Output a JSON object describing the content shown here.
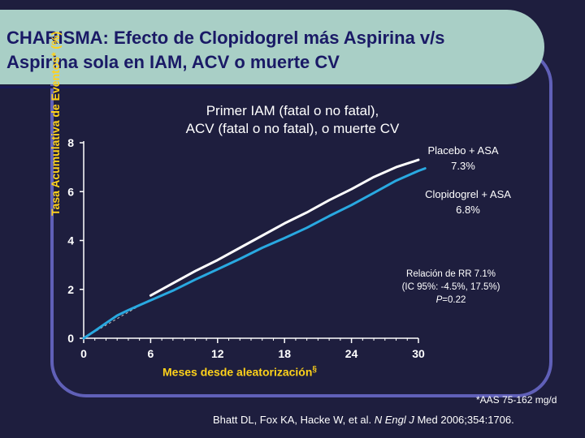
{
  "slide": {
    "title_line1": "CHARISMA: Efecto de Clopidogrel más Aspirina v/s",
    "title_line2": "Aspirina sola en IAM, ACV o muerte CV",
    "footnote": "*AAS 75-162 mg/d",
    "citation_prefix": "Bhatt DL, Fox KA, Hacke W, et al. ",
    "citation_journal": "N Engl J",
    "citation_suffix": " Med 2006;354:1706."
  },
  "chart_data": {
    "type": "line",
    "title_line1": "Primer IAM (fatal o no fatal),",
    "title_line2": "ACV (fatal o no fatal), o muerte CV",
    "ylabel": "Tasa Acumulativa de Eventos* (%)",
    "xlabel": "Meses desde aleatorización",
    "xlabel_sup": "§",
    "xlim": [
      0,
      30
    ],
    "ylim": [
      0,
      8
    ],
    "xticks": [
      "0",
      "6",
      "12",
      "18",
      "24",
      "30"
    ],
    "yticks": [
      "0",
      "2",
      "4",
      "6",
      "8"
    ],
    "series": [
      {
        "name": "Placebo + ASA",
        "value_label": "7.3%",
        "color": "#ffffff",
        "x": [
          6,
          8,
          10,
          12,
          14,
          16,
          18,
          20,
          22,
          24,
          26,
          28,
          29,
          30
        ],
        "y": [
          1.75,
          2.25,
          2.75,
          3.2,
          3.7,
          4.2,
          4.7,
          5.15,
          5.65,
          6.1,
          6.6,
          7.0,
          7.15,
          7.3
        ]
      },
      {
        "name": "Clopidogrel + ASA",
        "value_label": "6.8%",
        "color": "#29a9e1",
        "x": [
          0,
          1,
          2,
          3,
          4,
          5,
          6,
          8,
          10,
          12,
          14,
          16,
          18,
          20,
          22,
          24,
          26,
          28,
          30,
          30.6
        ],
        "y": [
          0,
          0.3,
          0.62,
          0.93,
          1.15,
          1.35,
          1.55,
          1.95,
          2.4,
          2.82,
          3.25,
          3.7,
          4.1,
          4.52,
          5.0,
          5.45,
          5.95,
          6.45,
          6.85,
          6.95
        ]
      }
    ],
    "annotation": {
      "line1": "Relación de RR 7.1%",
      "line2": "(IC 95%: -4.5%, 17.5%)",
      "p_label": "P",
      "p_value": "=0.22"
    }
  }
}
